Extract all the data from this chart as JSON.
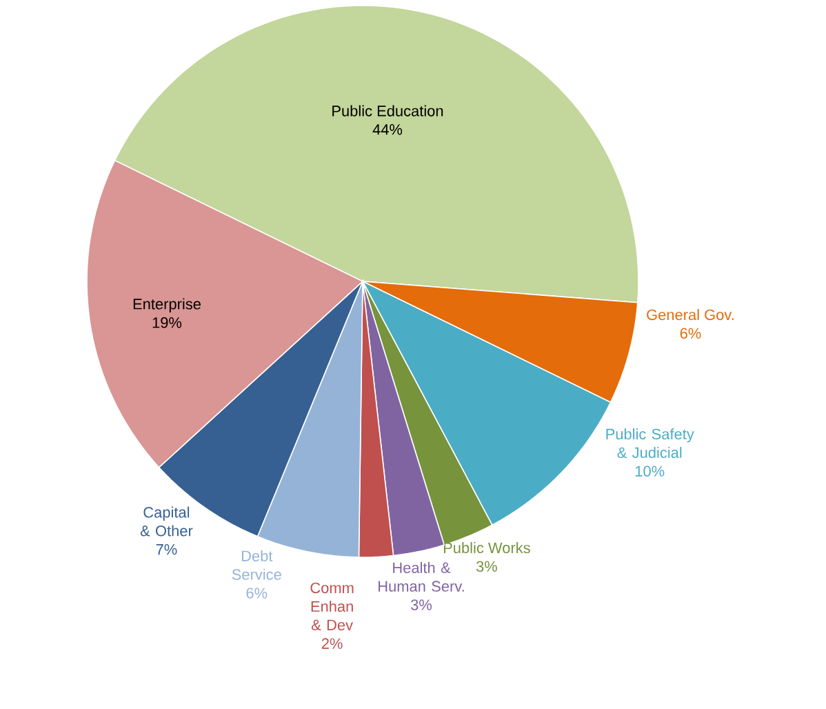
{
  "chart_data": {
    "type": "pie",
    "categories": [
      "Public Education",
      "General Gov.",
      "Public Safety & Judicial",
      "Public Works",
      "Health & Human Serv.",
      "Comm Enhan & Dev",
      "Debt Service",
      "Capital & Other",
      "Enterprise"
    ],
    "values": [
      44,
      6,
      10,
      3,
      3,
      2,
      6,
      7,
      19
    ],
    "colors": [
      "#c3d69b",
      "#e46c0a",
      "#4bacc6",
      "#77933c",
      "#8064a2",
      "#c0504d",
      "#95b3d7",
      "#366092",
      "#d99694"
    ],
    "value_labels": [
      "44%",
      "6%",
      "10%",
      "3%",
      "3%",
      "2%",
      "6%",
      "7%",
      "19%"
    ]
  }
}
